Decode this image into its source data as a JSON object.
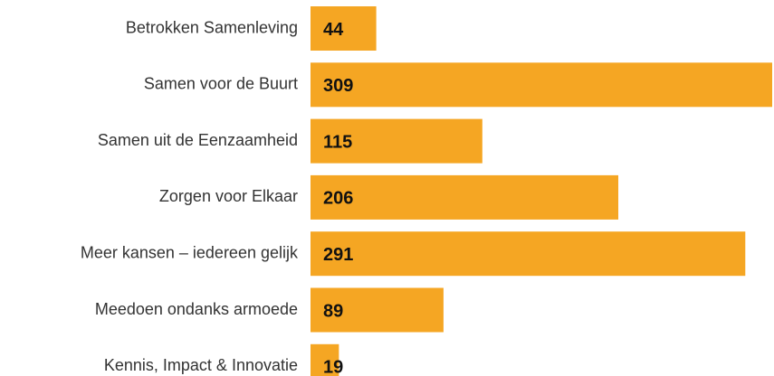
{
  "chart_data": {
    "type": "barh",
    "categories": [
      "Betrokken Samenleving",
      "Samen voor de Buurt",
      "Samen uit de Eenzaamheid",
      "Zorgen voor Elkaar",
      "Meer kansen – iedereen gelijk",
      "Meedoen ondanks armoede",
      "Kennis, Impact & Innovatie"
    ],
    "values": [
      44,
      309,
      115,
      206,
      291,
      89,
      19
    ],
    "color": "#f5a623"
  }
}
